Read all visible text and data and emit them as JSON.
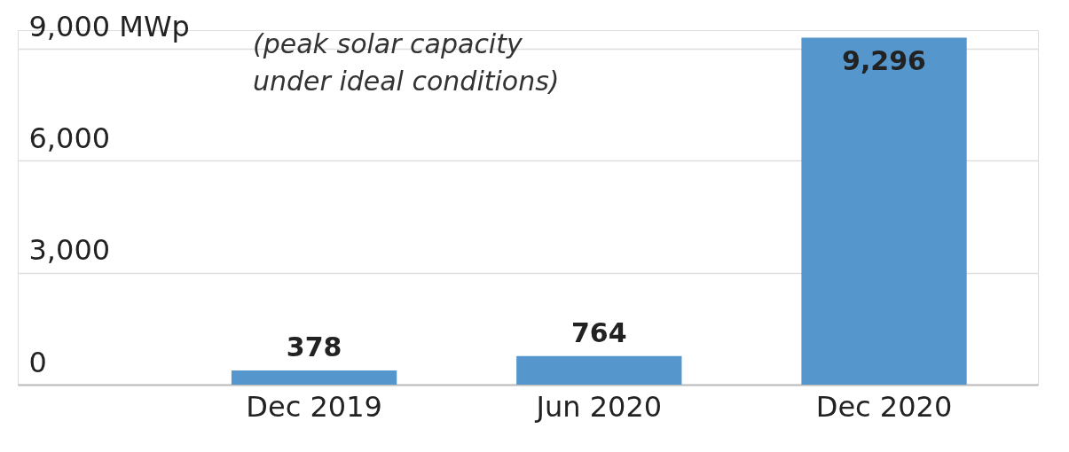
{
  "chart_data": {
    "type": "bar",
    "categories": [
      "Dec 2019",
      "Jun 2020",
      "Dec 2020"
    ],
    "values": [
      378,
      764,
      9296
    ],
    "color": "#5596cc",
    "ylim": [
      0,
      9500
    ],
    "yticks": [
      0,
      {
        "value": 3000,
        "label": "3,000"
      },
      {
        "value": 6000,
        "label": "6,000"
      },
      {
        "value": 9000,
        "label": "9,000 MWp"
      }
    ],
    "grid": "y",
    "value_labels": [
      "378",
      "764",
      "9,296"
    ],
    "annotations": [
      "(peak solar capacity\nunder ideal conditions)"
    ]
  }
}
